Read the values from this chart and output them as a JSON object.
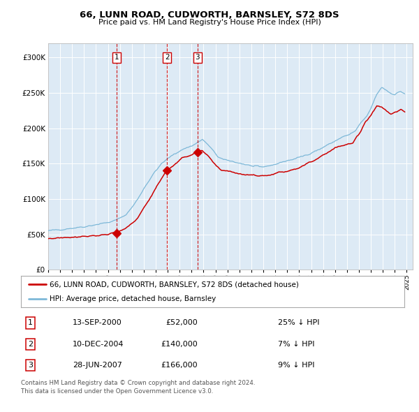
{
  "title": "66, LUNN ROAD, CUDWORTH, BARNSLEY, S72 8DS",
  "subtitle": "Price paid vs. HM Land Registry's House Price Index (HPI)",
  "legend_line1": "66, LUNN ROAD, CUDWORTH, BARNSLEY, S72 8DS (detached house)",
  "legend_line2": "HPI: Average price, detached house, Barnsley",
  "sale_dates_num": [
    2000.71,
    2004.94,
    2007.49
  ],
  "sale_prices": [
    52000,
    140000,
    166000
  ],
  "sale_labels": [
    "1",
    "2",
    "3"
  ],
  "vline_dates": [
    2000.71,
    2004.94,
    2007.49
  ],
  "table_rows": [
    [
      "1",
      "13-SEP-2000",
      "£52,000",
      "25% ↓ HPI"
    ],
    [
      "2",
      "10-DEC-2004",
      "£140,000",
      "7% ↓ HPI"
    ],
    [
      "3",
      "28-JUN-2007",
      "£166,000",
      "9% ↓ HPI"
    ]
  ],
  "footnote": "Contains HM Land Registry data © Crown copyright and database right 2024.\nThis data is licensed under the Open Government Licence v3.0.",
  "hpi_color": "#7db8d8",
  "price_color": "#cc0000",
  "plot_bg": "#ddeaf5",
  "ylim": [
    0,
    320000
  ],
  "xlim_start": 1995.0,
  "xlim_end": 2025.5,
  "yticks": [
    0,
    50000,
    100000,
    150000,
    200000,
    250000,
    300000
  ],
  "hpi_anchors_t": [
    1995.0,
    1996.0,
    1997.0,
    1998.0,
    1999.0,
    2000.0,
    2000.5,
    2001.0,
    2001.5,
    2002.0,
    2002.5,
    2003.0,
    2003.5,
    2004.0,
    2004.5,
    2005.0,
    2005.5,
    2006.0,
    2006.5,
    2007.0,
    2007.5,
    2007.9,
    2008.3,
    2008.8,
    2009.2,
    2009.7,
    2010.2,
    2010.7,
    2011.2,
    2011.7,
    2012.2,
    2012.7,
    2013.2,
    2013.7,
    2014.2,
    2014.7,
    2015.2,
    2015.7,
    2016.2,
    2016.7,
    2017.2,
    2017.7,
    2018.2,
    2018.7,
    2019.2,
    2019.7,
    2020.2,
    2020.7,
    2021.2,
    2021.7,
    2022.0,
    2022.5,
    2022.9,
    2023.2,
    2023.6,
    2024.0,
    2024.5,
    2024.9
  ],
  "hpi_anchors_v": [
    55000,
    57000,
    59000,
    61000,
    64000,
    67000,
    69000,
    73000,
    78000,
    88000,
    100000,
    115000,
    128000,
    140000,
    150000,
    157000,
    163000,
    168000,
    172000,
    175000,
    180000,
    184000,
    178000,
    168000,
    160000,
    155000,
    154000,
    152000,
    150000,
    148000,
    146000,
    145000,
    146000,
    148000,
    150000,
    153000,
    155000,
    157000,
    160000,
    163000,
    167000,
    170000,
    175000,
    179000,
    184000,
    188000,
    191000,
    196000,
    208000,
    218000,
    228000,
    248000,
    258000,
    255000,
    250000,
    248000,
    252000,
    248000
  ],
  "price_anchors_t": [
    1995.0,
    1996.0,
    1997.0,
    1998.0,
    1999.0,
    2000.0,
    2000.71,
    2001.2,
    2001.8,
    2002.5,
    2003.2,
    2003.8,
    2004.5,
    2004.94,
    2005.5,
    2006.0,
    2006.5,
    2007.0,
    2007.49,
    2007.9,
    2008.5,
    2009.0,
    2009.5,
    2010.0,
    2010.5,
    2011.0,
    2011.5,
    2012.0,
    2012.5,
    2013.0,
    2013.5,
    2014.0,
    2014.5,
    2015.0,
    2015.5,
    2016.0,
    2016.5,
    2017.0,
    2017.5,
    2018.0,
    2018.5,
    2019.0,
    2019.5,
    2020.0,
    2020.5,
    2021.0,
    2021.5,
    2022.0,
    2022.5,
    2022.9,
    2023.3,
    2023.7,
    2024.0,
    2024.5,
    2024.9
  ],
  "price_anchors_v": [
    44000,
    45500,
    46500,
    47500,
    48500,
    50000,
    52000,
    56000,
    62000,
    74000,
    92000,
    110000,
    130000,
    140000,
    148000,
    155000,
    160000,
    163000,
    166000,
    168000,
    158000,
    147000,
    141000,
    140000,
    138000,
    136000,
    135000,
    134000,
    133000,
    133000,
    134000,
    136000,
    138000,
    140000,
    142000,
    145000,
    148000,
    153000,
    157000,
    163000,
    167000,
    172000,
    175000,
    176000,
    180000,
    192000,
    208000,
    218000,
    232000,
    230000,
    225000,
    220000,
    223000,
    226000,
    222000
  ]
}
